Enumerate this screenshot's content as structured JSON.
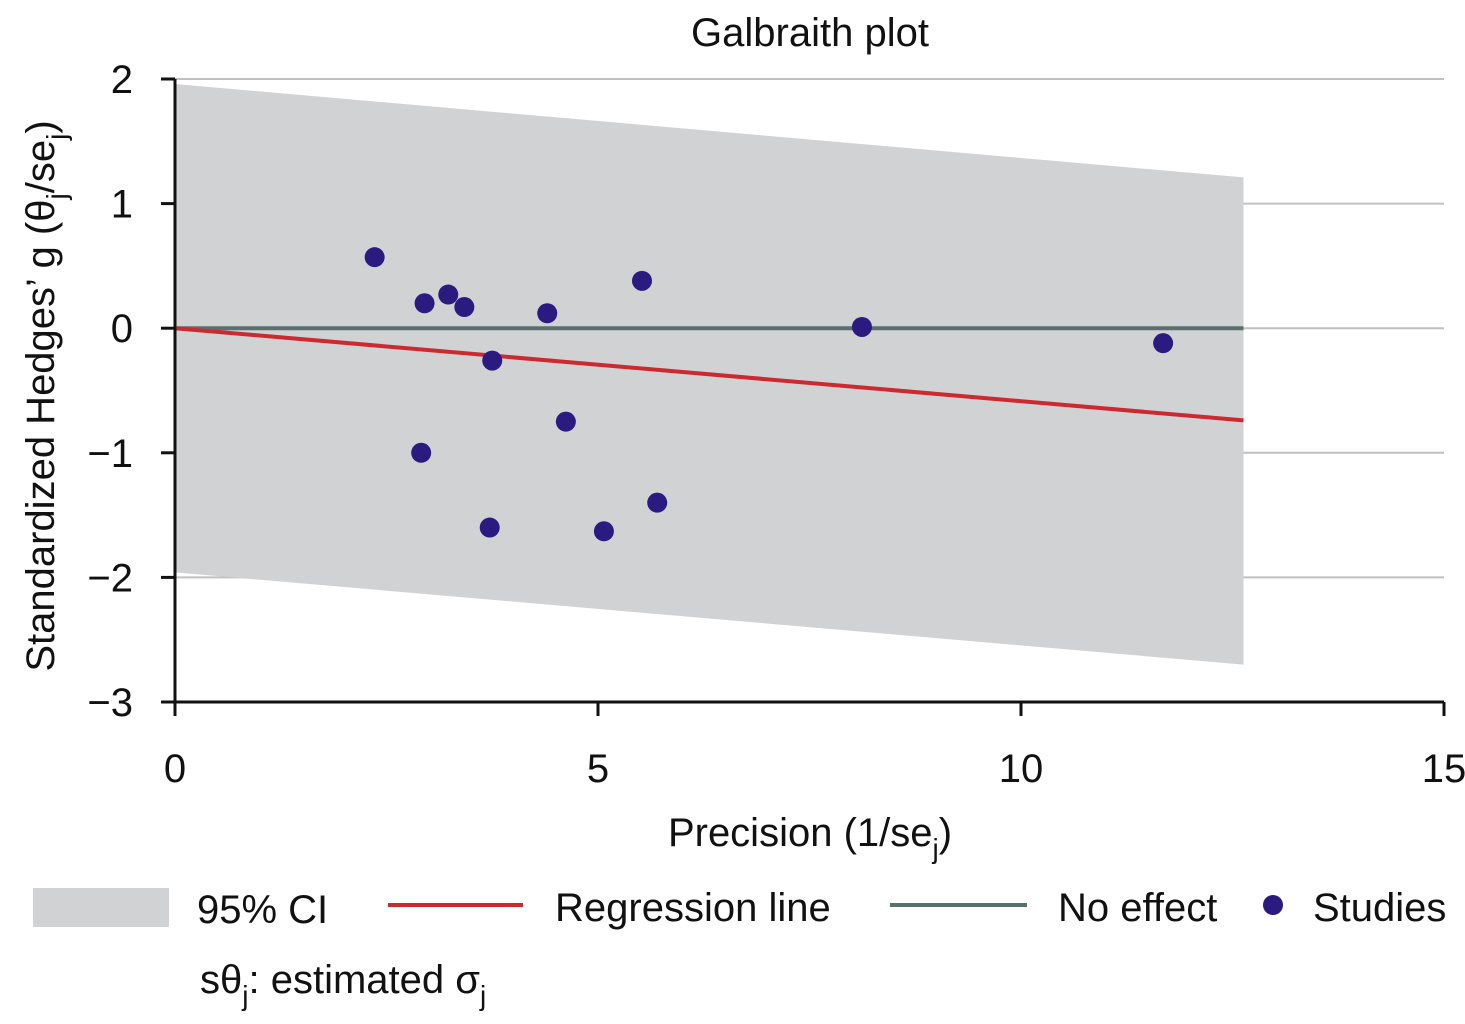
{
  "chart_data": {
    "type": "scatter",
    "title": "Galbraith plot",
    "xlabel": "Precision (1/se",
    "xlabel_sub": "j",
    "xlabel_close": ")",
    "ylabel": "Standardized Hedges’ g (θ",
    "ylabel_sub": "j",
    "ylabel_mid": "/se",
    "ylabel_sub2": "j",
    "ylabel_close": ")",
    "xlim": [
      0,
      15
    ],
    "ylim": [
      -3,
      2
    ],
    "xticks": [
      0,
      5,
      10,
      15
    ],
    "xtick_labels": [
      "0",
      "5",
      "10",
      "15"
    ],
    "yticks": [
      2,
      1,
      0,
      -1,
      -2,
      -3
    ],
    "ytick_labels": [
      "2",
      "1",
      "0",
      "−1",
      "−2",
      "−3"
    ],
    "grid": "horizontal",
    "ci_band": {
      "x": [
        0,
        12.63
      ],
      "upper": [
        1.96,
        1.21
      ],
      "lower": [
        -1.96,
        -2.7
      ]
    },
    "regression_line": {
      "x": [
        0,
        12.63
      ],
      "y": [
        0,
        -0.74
      ]
    },
    "no_effect_line": {
      "x": [
        0,
        12.63
      ],
      "y": [
        0,
        0
      ]
    },
    "series": [
      {
        "name": "Studies",
        "points": [
          {
            "x": 2.36,
            "y": 0.57
          },
          {
            "x": 2.95,
            "y": 0.2
          },
          {
            "x": 3.23,
            "y": 0.27
          },
          {
            "x": 3.42,
            "y": 0.17
          },
          {
            "x": 4.4,
            "y": 0.12
          },
          {
            "x": 5.52,
            "y": 0.38
          },
          {
            "x": 8.12,
            "y": 0.01
          },
          {
            "x": 11.68,
            "y": -0.12
          },
          {
            "x": 3.75,
            "y": -0.26
          },
          {
            "x": 4.62,
            "y": -0.75
          },
          {
            "x": 2.91,
            "y": -1.0
          },
          {
            "x": 3.72,
            "y": -1.6
          },
          {
            "x": 5.07,
            "y": -1.63
          },
          {
            "x": 5.7,
            "y": -1.4
          }
        ]
      }
    ],
    "legend": {
      "placement": "bottom",
      "items": [
        {
          "label": "95% CI",
          "kind": "band"
        },
        {
          "label": "Regression line",
          "kind": "line-red"
        },
        {
          "label": "No effect",
          "kind": "line-grey"
        },
        {
          "label": "Studies",
          "kind": "dot"
        }
      ],
      "note_prefix": "sθ",
      "note_sub1": "j",
      "note_mid": ": estimated σ",
      "note_sub2": "j"
    },
    "colors": {
      "band": "#d1d2d4",
      "regression": "#cc2a30",
      "no_effect": "#5a706f",
      "points": "#2b1a80",
      "grid": "#c0c0c0",
      "axis": "#111111"
    }
  }
}
